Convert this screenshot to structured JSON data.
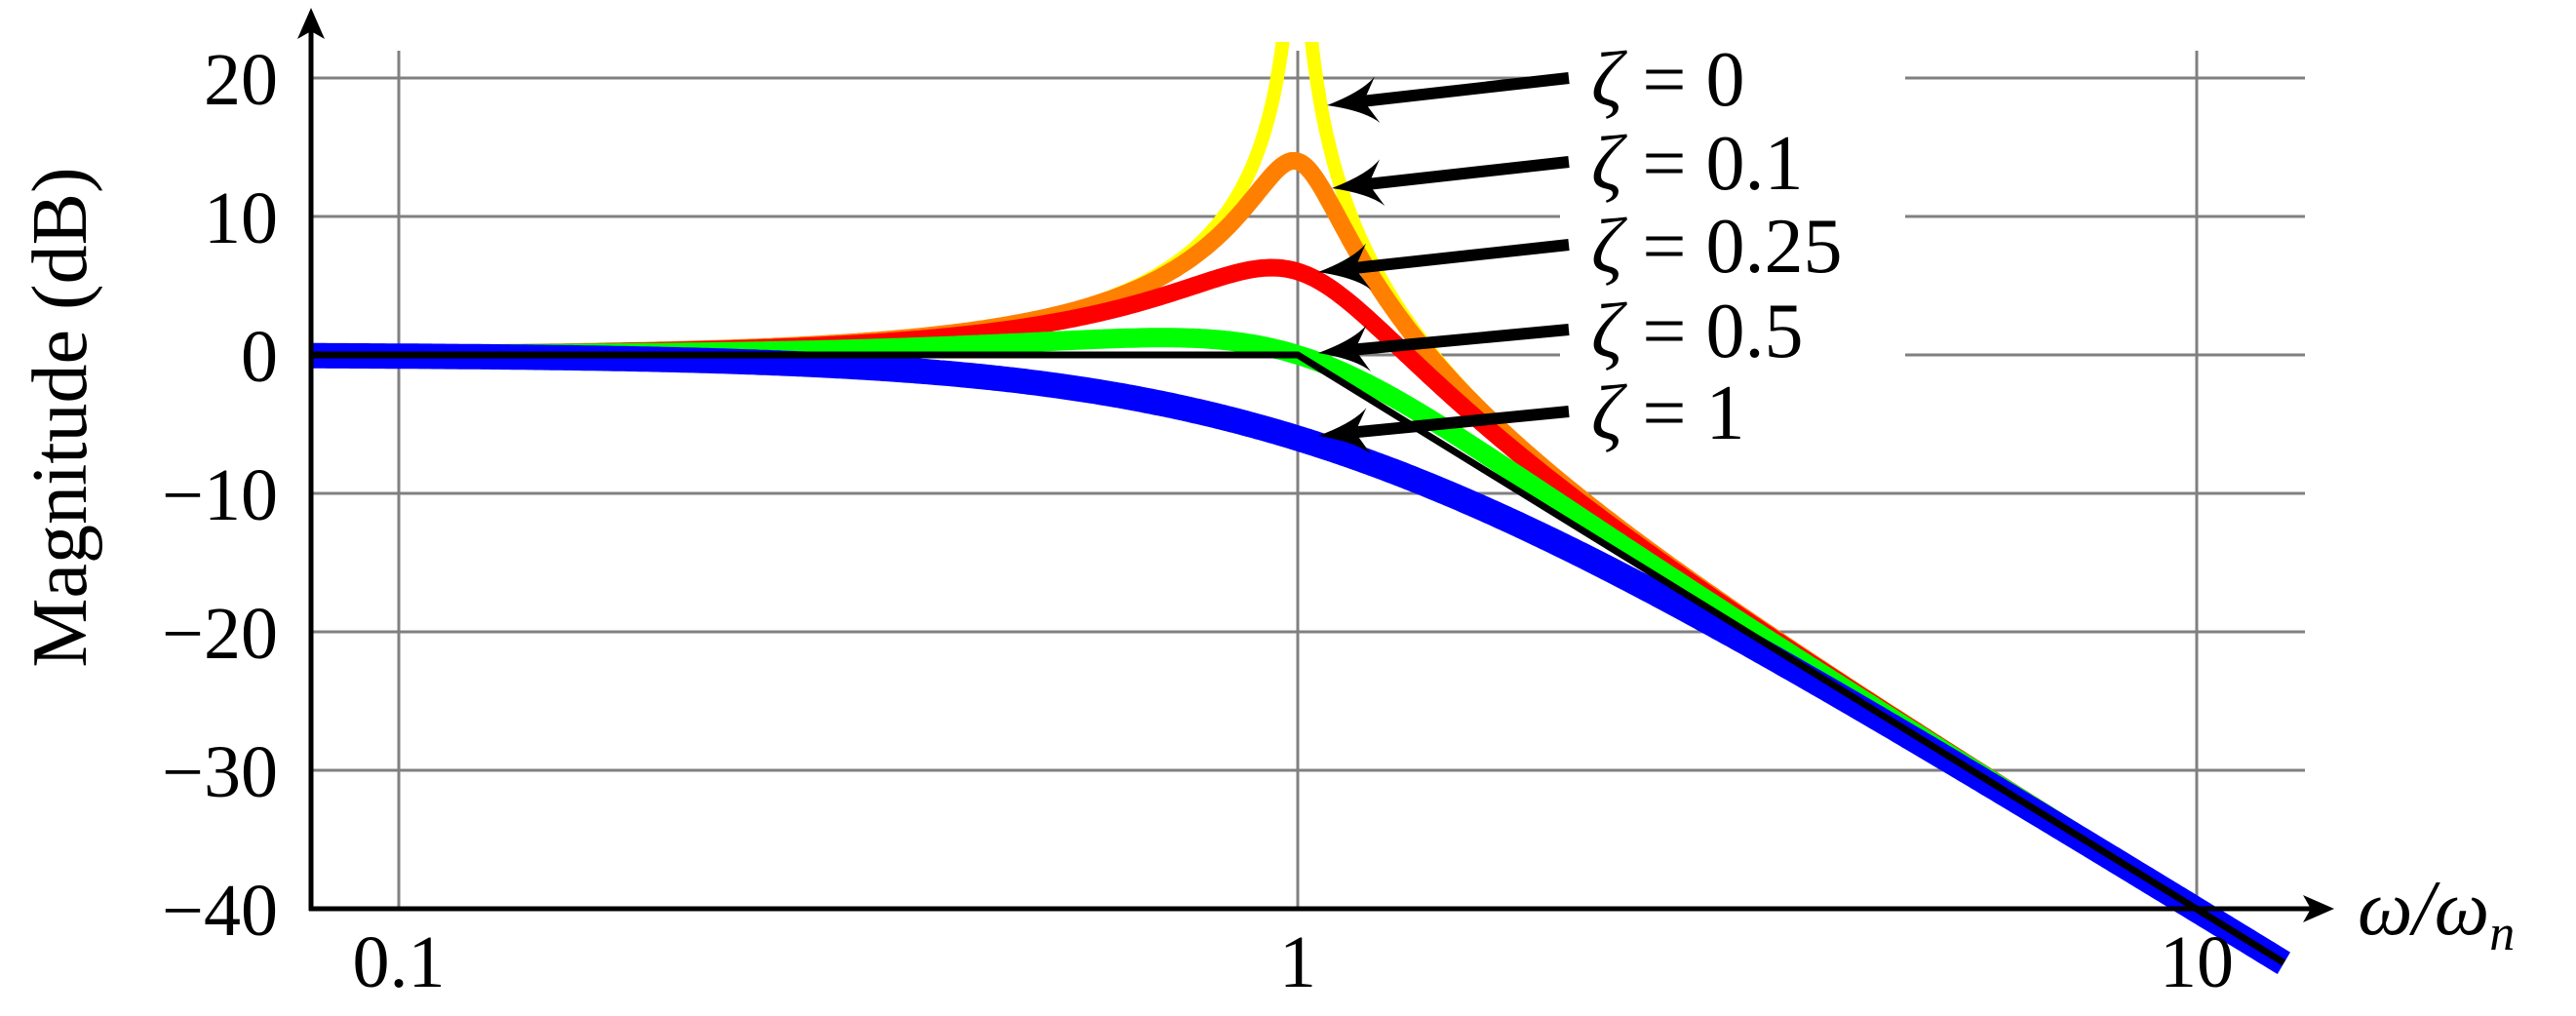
{
  "chart_data": {
    "type": "line",
    "title": "",
    "xlabel": "ω/ω",
    "xlabel_sub": "n",
    "ylabel": "Magnitude (dB)",
    "xscale": "log",
    "xlim": [
      0.08,
      12.5
    ],
    "ylim": [
      -40,
      22.6
    ],
    "grid": true,
    "xticks": [
      {
        "value": 0.1,
        "label": "0.1"
      },
      {
        "value": 1,
        "label": "1"
      },
      {
        "value": 10,
        "label": "10"
      }
    ],
    "yticks": [
      {
        "value": 20,
        "label": "20"
      },
      {
        "value": 10,
        "label": "10"
      },
      {
        "value": 0,
        "label": "0"
      },
      {
        "value": -10,
        "label": "−10"
      },
      {
        "value": -20,
        "label": "−20"
      },
      {
        "value": -30,
        "label": "−30"
      },
      {
        "value": -40,
        "label": "−40"
      }
    ],
    "model": "second-order low-pass |G| = 1/sqrt((1-x^2)^2+(2*zeta*x)^2)",
    "series": [
      {
        "name": "ζ = 0",
        "symbol": "ζ",
        "value_label": "= 0",
        "zeta": 0,
        "color": "#ffff00",
        "magnitude_at_wn_db": "inf"
      },
      {
        "name": "ζ = 0.1",
        "symbol": "ζ",
        "value_label": "= 0.1",
        "zeta": 0.1,
        "color": "#ff8000",
        "magnitude_at_wn_db": 13.98
      },
      {
        "name": "ζ = 0.25",
        "symbol": "ζ",
        "value_label": "= 0.25",
        "zeta": 0.25,
        "color": "#ff0000",
        "magnitude_at_wn_db": 6.02
      },
      {
        "name": "ζ = 0.5",
        "symbol": "ζ",
        "value_label": "= 0.5",
        "zeta": 0.5,
        "color": "#00ff00",
        "magnitude_at_wn_db": 0
      },
      {
        "name": "ζ = 1",
        "symbol": "ζ",
        "value_label": "= 1",
        "zeta": 1,
        "color": "#0000ff",
        "magnitude_at_wn_db": -6.02
      }
    ],
    "asymptote": {
      "name": "asymptote",
      "color": "#000000",
      "points": [
        [
          0.08,
          0
        ],
        [
          1,
          0
        ],
        [
          12.5,
          -43.9
        ]
      ]
    }
  }
}
